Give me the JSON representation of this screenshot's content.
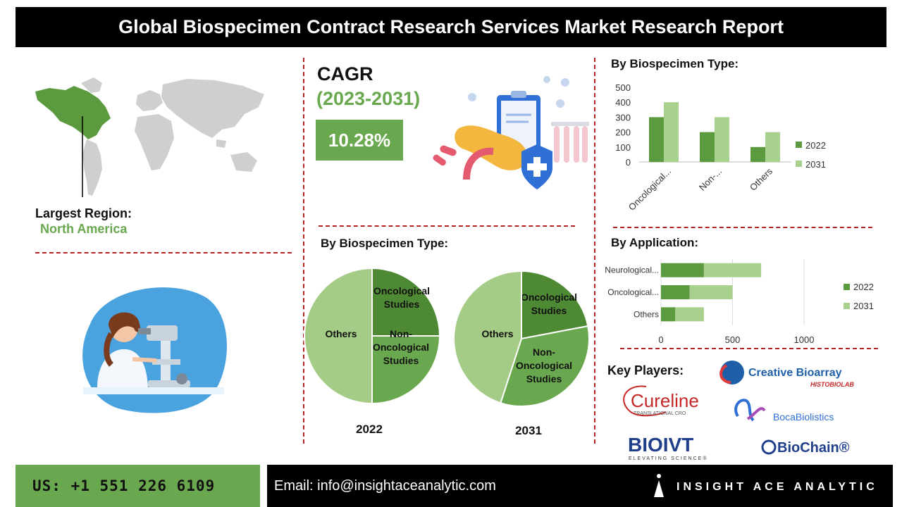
{
  "header": {
    "title": "Global Biospecimen Contract Research Services Market Research Report"
  },
  "region": {
    "label": "Largest Region:",
    "value": "North America"
  },
  "cagr": {
    "label": "CAGR",
    "period": "(2023-2031)",
    "value": "10.28%"
  },
  "colors": {
    "accent": "#6aa84f",
    "dark_green": "#5b9a3e",
    "light_green": "#a9d18e",
    "divider": "#b22222",
    "header_bg": "#000000"
  },
  "chart_data": [
    {
      "type": "bar",
      "title": "By Biospecimen Type:",
      "categories": [
        "Oncological...",
        "Non-...",
        "Others"
      ],
      "series": [
        {
          "name": "2022",
          "values": [
            300,
            200,
            100
          ]
        },
        {
          "name": "2031",
          "values": [
            400,
            300,
            200
          ]
        }
      ],
      "ylim": [
        0,
        500
      ],
      "yticks": [
        0,
        100,
        200,
        300,
        400,
        500
      ],
      "legend": "right"
    },
    {
      "type": "pie",
      "title": "By Biospecimen Type:",
      "charts": [
        {
          "label": "2022",
          "slices": [
            {
              "name": "Oncological Studies",
              "value": 25
            },
            {
              "name": "Non-Oncological Studies",
              "value": 25
            },
            {
              "name": "Others",
              "value": 50
            }
          ]
        },
        {
          "label": "2031",
          "slices": [
            {
              "name": "Oncological Studies",
              "value": 22
            },
            {
              "name": "Non-Oncological Studies",
              "value": 33
            },
            {
              "name": "Others",
              "value": 45
            }
          ]
        }
      ]
    },
    {
      "type": "bar",
      "orientation": "horizontal",
      "stacked": true,
      "title": "By Application:",
      "categories": [
        "Neurological...",
        "Oncological...",
        "Others"
      ],
      "series": [
        {
          "name": "2022",
          "values": [
            300,
            200,
            100
          ]
        },
        {
          "name": "2031",
          "values": [
            400,
            300,
            200
          ]
        }
      ],
      "xlim": [
        0,
        1000
      ],
      "xticks": [
        0,
        500,
        1000
      ],
      "legend": "right"
    }
  ],
  "players": {
    "title": "Key Players:",
    "names": [
      "Creative Bioarray",
      "HISTOBIOLAB",
      "Cureline",
      "TRANSLATIONAL CRO",
      "BocaBiolistics",
      "BIOIVT",
      "ELEVATING SCIENCE®",
      "BioChain®"
    ]
  },
  "footer": {
    "phone": "US: +1 551 226 6109",
    "email": "Email: info@insightaceanalytic.com",
    "brand": "INSIGHT ACE ANALYTIC"
  }
}
